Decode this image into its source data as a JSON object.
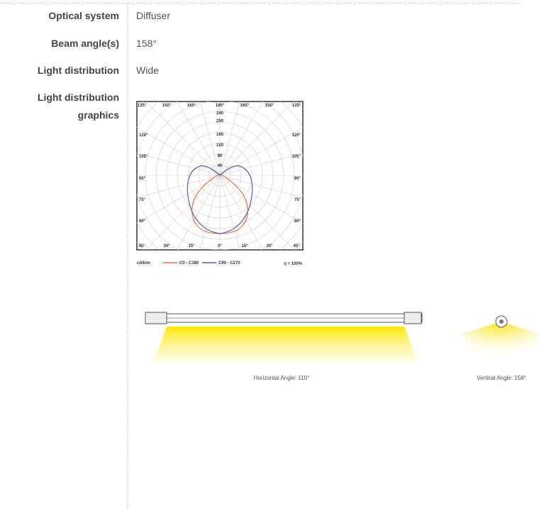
{
  "rows": [
    {
      "label": "Optical system",
      "value": "Diffuser"
    },
    {
      "label": "Beam angle(s)",
      "value": "158°"
    },
    {
      "label": "Light distribution",
      "value": "Wide"
    },
    {
      "label": "Light distribution graphics"
    }
  ],
  "polar": {
    "top_angles": [
      "135°",
      "150°",
      "165°",
      "180°",
      "165°",
      "150°",
      "135°"
    ],
    "left_angles": [
      "120°",
      "105°",
      "90°",
      "75°",
      "60°"
    ],
    "right_angles": [
      "120°",
      "105°",
      "90°",
      "75°",
      "60°"
    ],
    "bottom_angles": [
      "45°",
      "30°",
      "15°",
      "0°",
      "15°",
      "30°",
      "45°"
    ],
    "radial": [
      "240",
      "200",
      "160",
      "120",
      "80",
      "40"
    ],
    "unit": "cd/klm",
    "legend": [
      "C0 - C180",
      "C90 - C270"
    ],
    "efficiency": "η = 100%"
  },
  "illustrations": {
    "horizontal": "Horizontal Angle: 110°",
    "vertical": "Vertical Angle: 158°"
  }
}
